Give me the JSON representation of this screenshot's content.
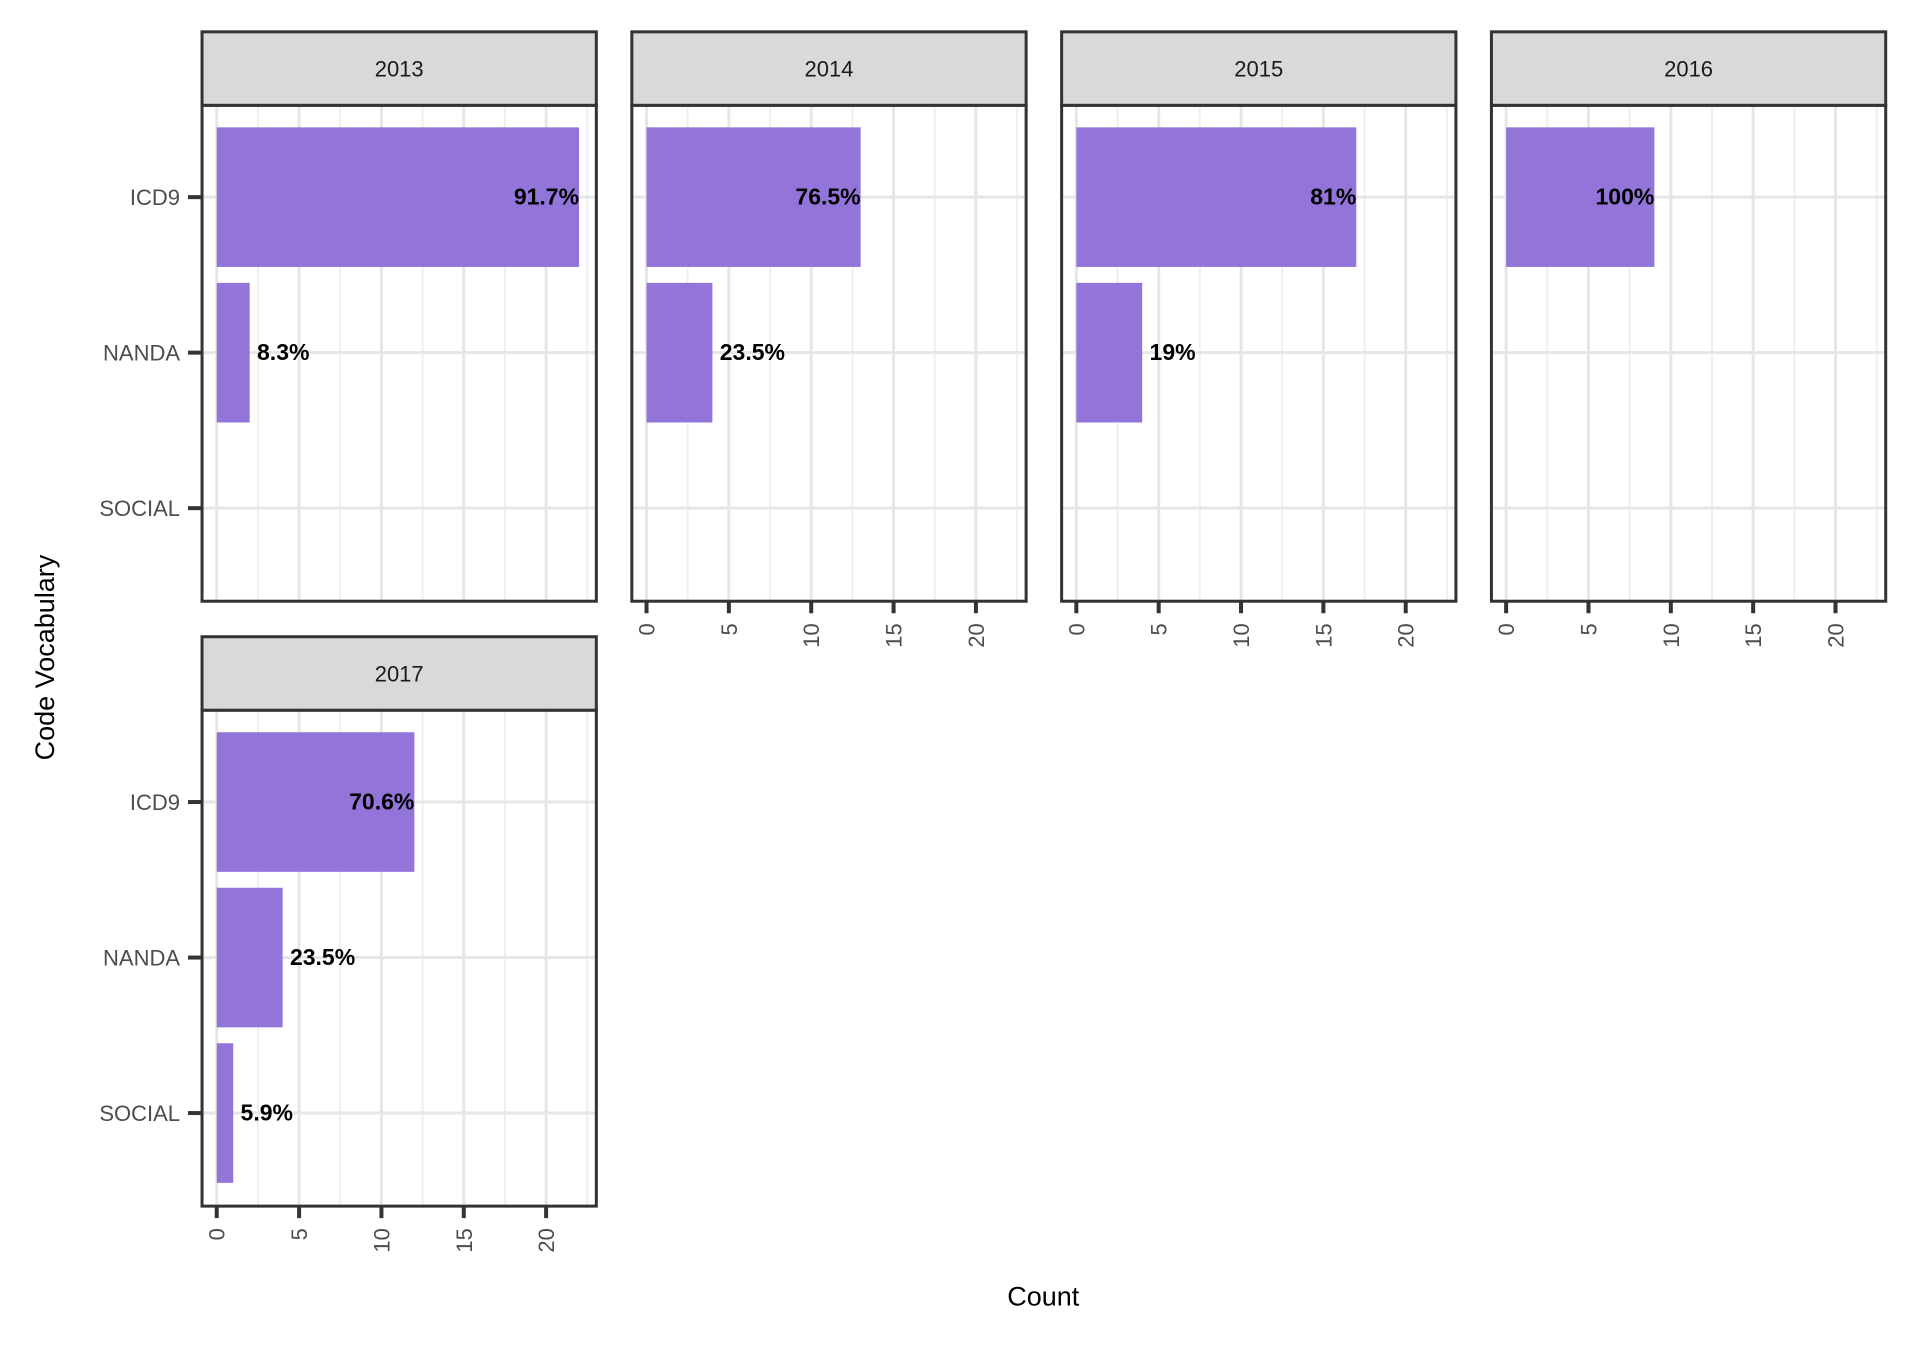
{
  "chart_data": {
    "type": "bar",
    "orientation": "horizontal",
    "faceted": true,
    "xlabel": "Count",
    "ylabel": "Code Vocabulary",
    "categories": [
      "ICD9",
      "NANDA",
      "SOCIAL"
    ],
    "x_ticks": [
      0,
      5,
      10,
      15,
      20
    ],
    "xlim": [
      -1,
      23
    ],
    "grid": true,
    "bar_color": "#9374d9",
    "strip_color": "#d9d9d9",
    "panels": [
      {
        "title": "2013",
        "values": [
          22,
          2,
          0
        ],
        "labels": [
          "91.7%",
          "8.3%",
          ""
        ]
      },
      {
        "title": "2014",
        "values": [
          13,
          4,
          0
        ],
        "labels": [
          "76.5%",
          "23.5%",
          ""
        ]
      },
      {
        "title": "2015",
        "values": [
          17,
          4,
          0
        ],
        "labels": [
          "81%",
          "19%",
          ""
        ]
      },
      {
        "title": "2016",
        "values": [
          9,
          0,
          0
        ],
        "labels": [
          "100%",
          "",
          ""
        ]
      },
      {
        "title": "2017",
        "values": [
          12,
          4,
          1
        ],
        "labels": [
          "70.6%",
          "23.5%",
          "5.9%"
        ]
      }
    ]
  }
}
